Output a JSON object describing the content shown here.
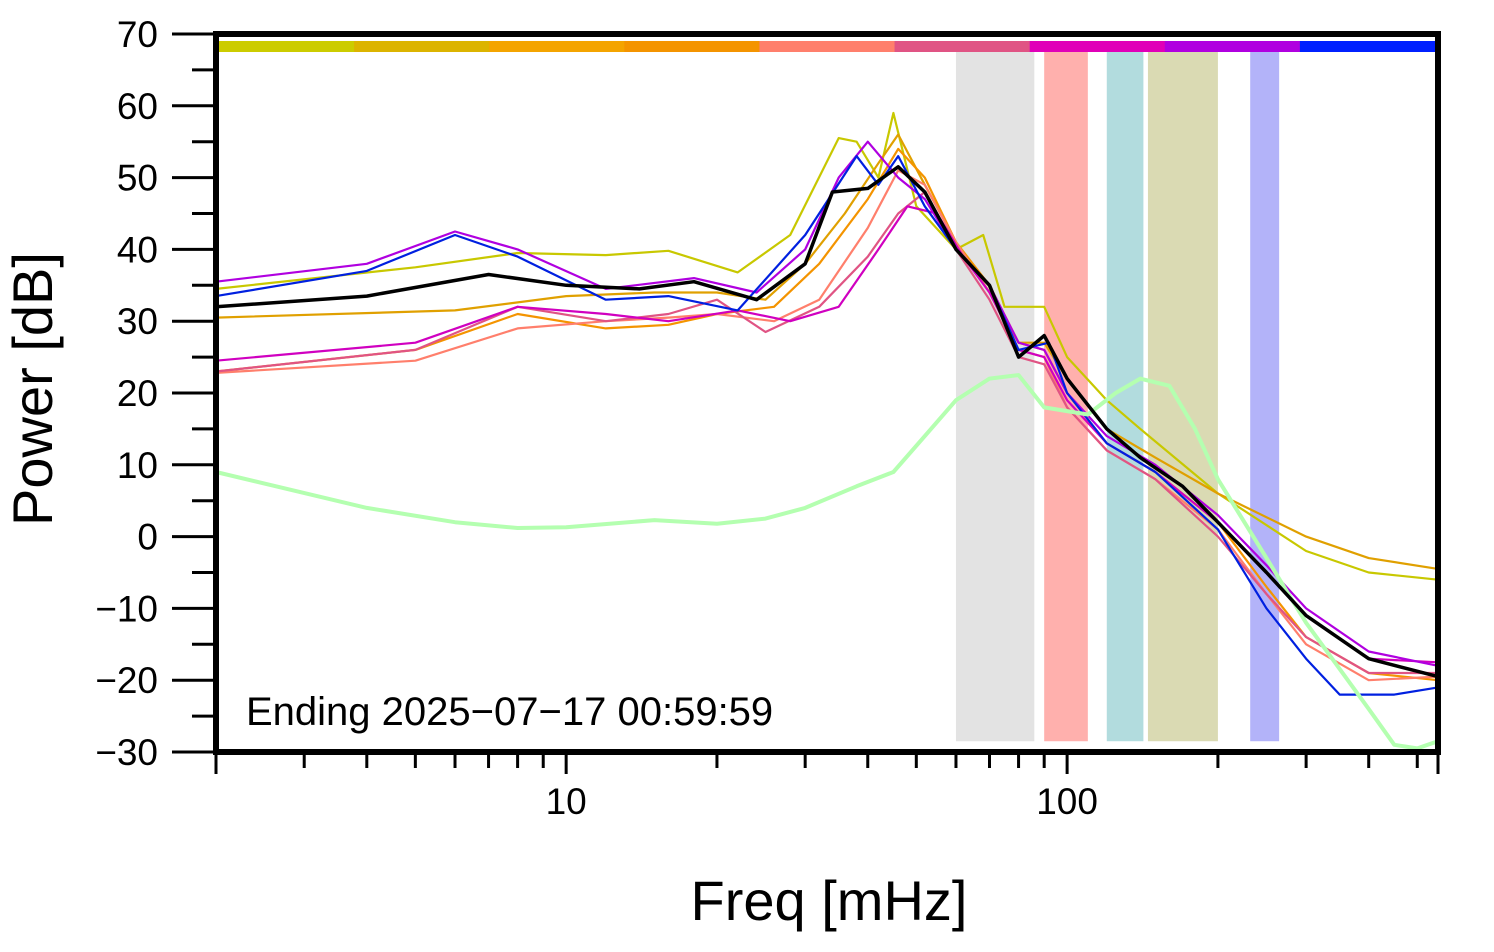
{
  "chart_data": {
    "type": "line",
    "xlabel": "Freq [mHz]",
    "ylabel": "Power [dB]",
    "xscale": "log",
    "xlim": [
      2,
      550
    ],
    "ylim": [
      -30,
      70
    ],
    "grid": false,
    "annotation": "Ending 2025−07−17 00:59:59",
    "x_tick_labels": [
      {
        "value": 10,
        "label": "10"
      },
      {
        "value": 100,
        "label": "100"
      }
    ],
    "y_tick_labels": [
      {
        "value": 70,
        "label": "70"
      },
      {
        "value": 60,
        "label": "60"
      },
      {
        "value": 50,
        "label": "50"
      },
      {
        "value": 40,
        "label": "40"
      },
      {
        "value": 30,
        "label": "30"
      },
      {
        "value": 20,
        "label": "20"
      },
      {
        "value": 10,
        "label": "10"
      },
      {
        "value": 0,
        "label": "0"
      },
      {
        "value": -10,
        "label": "−10"
      },
      {
        "value": -20,
        "label": "−20"
      },
      {
        "value": -30,
        "label": "−30"
      }
    ],
    "x_major_ticks": [
      2,
      3,
      4,
      5,
      6,
      7,
      8,
      9,
      10,
      20,
      30,
      40,
      50,
      60,
      70,
      80,
      90,
      100,
      200,
      300,
      400,
      500
    ],
    "x_minor_ticks": [],
    "y_major_ticks": [
      70,
      60,
      50,
      40,
      30,
      20,
      10,
      0,
      -10,
      -20,
      -30
    ],
    "y_minor_ticks": [
      65,
      55,
      45,
      35,
      25,
      15,
      5,
      -5,
      -15,
      -25
    ],
    "bands": [
      {
        "x0": 60,
        "x1": 86,
        "color": "#e3e3e3"
      },
      {
        "x0": 90,
        "x1": 110,
        "color": "#ffb0ad"
      },
      {
        "x0": 120,
        "x1": 142,
        "color": "#b2dcde"
      },
      {
        "x0": 145,
        "x1": 200,
        "color": "#dadab3"
      },
      {
        "x0": 232,
        "x1": 265,
        "color": "#b3b3f9"
      }
    ],
    "band_ymax": 68,
    "band_ymin": -28.5,
    "color_bar": [
      "#cccc00",
      "#dcb400",
      "#f4a400",
      "#f49400",
      "#ff7f6c",
      "#e05484",
      "#e000b8",
      "#b000e0",
      "#0020ff"
    ],
    "series": [
      {
        "color": "#c8c800",
        "width": 2.2,
        "points": [
          [
            2,
            34.5
          ],
          [
            5,
            37.5
          ],
          [
            8,
            39.5
          ],
          [
            12,
            39.2
          ],
          [
            16,
            39.8
          ],
          [
            22,
            36.8
          ],
          [
            28,
            42
          ],
          [
            35,
            55.5
          ],
          [
            38,
            55
          ],
          [
            42,
            50
          ],
          [
            45,
            59
          ],
          [
            50,
            46
          ],
          [
            60,
            40
          ],
          [
            68,
            42
          ],
          [
            75,
            32
          ],
          [
            90,
            32
          ],
          [
            100,
            25
          ],
          [
            120,
            19
          ],
          [
            140,
            15
          ],
          [
            200,
            6
          ],
          [
            300,
            -2
          ],
          [
            400,
            -5
          ],
          [
            550,
            -6
          ]
        ]
      },
      {
        "color": "#e0a000",
        "width": 2.2,
        "points": [
          [
            2,
            30.5
          ],
          [
            6,
            31.5
          ],
          [
            10,
            33.5
          ],
          [
            15,
            34
          ],
          [
            20,
            34
          ],
          [
            25,
            33
          ],
          [
            30,
            38
          ],
          [
            36,
            45
          ],
          [
            42,
            52
          ],
          [
            46,
            56
          ],
          [
            52,
            49
          ],
          [
            60,
            41
          ],
          [
            70,
            34
          ],
          [
            80,
            27
          ],
          [
            90,
            27
          ],
          [
            100,
            22
          ],
          [
            120,
            15
          ],
          [
            150,
            11
          ],
          [
            200,
            6
          ],
          [
            300,
            0
          ],
          [
            400,
            -3
          ],
          [
            550,
            -4.5
          ]
        ]
      },
      {
        "color": "#f49400",
        "width": 2.2,
        "points": [
          [
            2,
            23
          ],
          [
            5,
            26
          ],
          [
            8,
            31
          ],
          [
            12,
            29
          ],
          [
            16,
            29.5
          ],
          [
            20,
            31
          ],
          [
            26,
            32
          ],
          [
            32,
            38
          ],
          [
            40,
            47
          ],
          [
            46,
            54
          ],
          [
            52,
            50
          ],
          [
            60,
            41
          ],
          [
            70,
            35
          ],
          [
            80,
            27
          ],
          [
            90,
            26
          ],
          [
            100,
            20
          ],
          [
            120,
            13
          ],
          [
            150,
            9
          ],
          [
            200,
            2
          ],
          [
            250,
            -7
          ],
          [
            300,
            -14
          ],
          [
            400,
            -19
          ],
          [
            550,
            -20
          ]
        ]
      },
      {
        "color": "#ff7f6c",
        "width": 2.2,
        "points": [
          [
            2,
            22.8
          ],
          [
            5,
            24.5
          ],
          [
            8,
            29
          ],
          [
            12,
            30
          ],
          [
            16,
            30.5
          ],
          [
            20,
            31
          ],
          [
            26,
            30
          ],
          [
            32,
            33
          ],
          [
            40,
            43
          ],
          [
            46,
            51
          ],
          [
            52,
            49
          ],
          [
            60,
            41
          ],
          [
            70,
            34
          ],
          [
            80,
            26
          ],
          [
            90,
            25
          ],
          [
            100,
            18
          ],
          [
            120,
            12
          ],
          [
            150,
            8
          ],
          [
            200,
            1
          ],
          [
            250,
            -8
          ],
          [
            300,
            -15
          ],
          [
            400,
            -20
          ],
          [
            550,
            -19.5
          ]
        ]
      },
      {
        "color": "#e05484",
        "width": 2.2,
        "points": [
          [
            2,
            23
          ],
          [
            5,
            26
          ],
          [
            8,
            32
          ],
          [
            12,
            30
          ],
          [
            16,
            31
          ],
          [
            20,
            33
          ],
          [
            25,
            28.5
          ],
          [
            32,
            32
          ],
          [
            40,
            39
          ],
          [
            46,
            45
          ],
          [
            52,
            48
          ],
          [
            60,
            40
          ],
          [
            70,
            33
          ],
          [
            80,
            25
          ],
          [
            90,
            24
          ],
          [
            100,
            18
          ],
          [
            120,
            12
          ],
          [
            150,
            8
          ],
          [
            200,
            0
          ],
          [
            250,
            -8
          ],
          [
            300,
            -14
          ],
          [
            400,
            -19
          ],
          [
            550,
            -19
          ]
        ]
      },
      {
        "color": "#d000c0",
        "width": 2.2,
        "points": [
          [
            2,
            24.5
          ],
          [
            5,
            27
          ],
          [
            8,
            32
          ],
          [
            12,
            31
          ],
          [
            16,
            30
          ],
          [
            22,
            31.5
          ],
          [
            28,
            30
          ],
          [
            35,
            32
          ],
          [
            42,
            40
          ],
          [
            48,
            46
          ],
          [
            55,
            45
          ],
          [
            62,
            39
          ],
          [
            70,
            34
          ],
          [
            80,
            26
          ],
          [
            90,
            25
          ],
          [
            100,
            19
          ],
          [
            120,
            13
          ],
          [
            150,
            9
          ],
          [
            200,
            2
          ],
          [
            250,
            -5
          ],
          [
            300,
            -11
          ],
          [
            400,
            -17
          ],
          [
            550,
            -17.5
          ]
        ]
      },
      {
        "color": "#b000e0",
        "width": 2.2,
        "points": [
          [
            2,
            35.5
          ],
          [
            4,
            38
          ],
          [
            6,
            42.5
          ],
          [
            8,
            40
          ],
          [
            12,
            34.5
          ],
          [
            18,
            36
          ],
          [
            24,
            34
          ],
          [
            30,
            40
          ],
          [
            35,
            50
          ],
          [
            40,
            55
          ],
          [
            46,
            50
          ],
          [
            52,
            47
          ],
          [
            60,
            40
          ],
          [
            70,
            35
          ],
          [
            80,
            27
          ],
          [
            90,
            26
          ],
          [
            100,
            20
          ],
          [
            120,
            14
          ],
          [
            150,
            10
          ],
          [
            200,
            3
          ],
          [
            250,
            -4
          ],
          [
            300,
            -10
          ],
          [
            400,
            -16
          ],
          [
            550,
            -18
          ]
        ]
      },
      {
        "color": "#0020e0",
        "width": 2.2,
        "points": [
          [
            2,
            33.5
          ],
          [
            4,
            37
          ],
          [
            6,
            42
          ],
          [
            8,
            39
          ],
          [
            12,
            33
          ],
          [
            16,
            33.5
          ],
          [
            22,
            31.5
          ],
          [
            30,
            42
          ],
          [
            38,
            53
          ],
          [
            42,
            49
          ],
          [
            46,
            53
          ],
          [
            52,
            46
          ],
          [
            60,
            40
          ],
          [
            70,
            35
          ],
          [
            80,
            26
          ],
          [
            92,
            27
          ],
          [
            100,
            20
          ],
          [
            120,
            13
          ],
          [
            150,
            9
          ],
          [
            200,
            1
          ],
          [
            250,
            -10
          ],
          [
            300,
            -17
          ],
          [
            350,
            -22
          ],
          [
            450,
            -22
          ],
          [
            550,
            -21
          ]
        ]
      },
      {
        "color": "#b4ffb0",
        "width": 4,
        "points": [
          [
            2,
            9
          ],
          [
            4,
            4
          ],
          [
            6,
            2
          ],
          [
            8,
            1.2
          ],
          [
            10,
            1.3
          ],
          [
            15,
            2.3
          ],
          [
            20,
            1.8
          ],
          [
            25,
            2.5
          ],
          [
            30,
            4
          ],
          [
            38,
            7
          ],
          [
            45,
            9
          ],
          [
            52,
            14
          ],
          [
            60,
            19
          ],
          [
            70,
            22
          ],
          [
            80,
            22.5
          ],
          [
            90,
            18
          ],
          [
            110,
            17
          ],
          [
            125,
            20
          ],
          [
            140,
            22
          ],
          [
            160,
            21
          ],
          [
            180,
            15
          ],
          [
            200,
            8
          ],
          [
            250,
            -3
          ],
          [
            300,
            -12
          ],
          [
            400,
            -24
          ],
          [
            450,
            -29
          ],
          [
            500,
            -29.5
          ],
          [
            550,
            -28.5
          ]
        ]
      },
      {
        "color": "#000000",
        "width": 3.5,
        "points": [
          [
            2,
            32
          ],
          [
            4,
            33.5
          ],
          [
            7,
            36.5
          ],
          [
            10,
            35
          ],
          [
            14,
            34.5
          ],
          [
            18,
            35.5
          ],
          [
            24,
            33
          ],
          [
            30,
            38
          ],
          [
            34,
            48
          ],
          [
            40,
            48.5
          ],
          [
            46,
            51.5
          ],
          [
            52,
            48
          ],
          [
            60,
            40
          ],
          [
            70,
            35
          ],
          [
            80,
            25
          ],
          [
            90,
            28
          ],
          [
            100,
            22
          ],
          [
            120,
            15
          ],
          [
            140,
            11
          ],
          [
            170,
            7
          ],
          [
            200,
            2
          ],
          [
            250,
            -5
          ],
          [
            300,
            -11
          ],
          [
            400,
            -17
          ],
          [
            550,
            -19.5
          ]
        ]
      }
    ]
  }
}
